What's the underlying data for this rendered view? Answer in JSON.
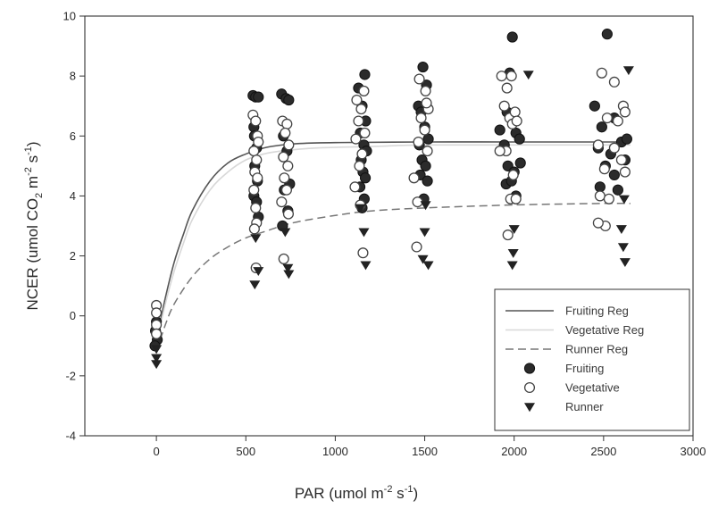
{
  "chart_data": {
    "type": "scatter",
    "xlabel": {
      "pre": "PAR (umol m",
      "sup1": "-2",
      "mid": " s",
      "sup2": "-1",
      "post": ")"
    },
    "ylabel": {
      "pre": "NCER (umol CO",
      "sub": "2",
      "mid1": " m",
      "sup1": "-2",
      "mid2": " s",
      "sup2": "-1",
      "post": ")"
    },
    "xlim": [
      -400,
      3000
    ],
    "ylim": [
      -4,
      10
    ],
    "xticks": [
      0,
      500,
      1000,
      1500,
      2000,
      2500,
      3000
    ],
    "yticks": [
      -4,
      -2,
      0,
      2,
      4,
      6,
      8,
      10
    ],
    "grid": false,
    "legend_position": "bottom-right",
    "colors": {
      "fruiting": "#2b2b2b",
      "vegetative": "#ffffff",
      "runner": "#222222",
      "fruiting_reg": "#555555",
      "vegetative_reg": "#d8d8d8",
      "runner_reg": "#777777"
    },
    "curves": [
      {
        "name": "Fruiting Reg",
        "style": "solid",
        "points": [
          [
            0,
            -0.8
          ],
          [
            50,
            0.6
          ],
          [
            100,
            1.8
          ],
          [
            150,
            2.7
          ],
          [
            200,
            3.5
          ],
          [
            300,
            4.5
          ],
          [
            400,
            5.1
          ],
          [
            500,
            5.4
          ],
          [
            600,
            5.6
          ],
          [
            700,
            5.7
          ],
          [
            800,
            5.75
          ],
          [
            1000,
            5.78
          ],
          [
            1500,
            5.8
          ],
          [
            2000,
            5.8
          ],
          [
            2500,
            5.8
          ],
          [
            2650,
            5.8
          ]
        ]
      },
      {
        "name": "Vegetative Reg",
        "style": "solid",
        "points": [
          [
            0,
            -0.9
          ],
          [
            50,
            0.4
          ],
          [
            100,
            1.5
          ],
          [
            150,
            2.4
          ],
          [
            200,
            3.2
          ],
          [
            300,
            4.2
          ],
          [
            400,
            4.8
          ],
          [
            500,
            5.2
          ],
          [
            600,
            5.4
          ],
          [
            700,
            5.5
          ],
          [
            900,
            5.6
          ],
          [
            1200,
            5.65
          ],
          [
            1500,
            5.7
          ],
          [
            2000,
            5.7
          ],
          [
            2650,
            5.7
          ]
        ]
      },
      {
        "name": "Runner Reg",
        "style": "dashed",
        "points": [
          [
            0,
            -1.2
          ],
          [
            50,
            -0.3
          ],
          [
            100,
            0.4
          ],
          [
            200,
            1.3
          ],
          [
            300,
            1.9
          ],
          [
            400,
            2.3
          ],
          [
            500,
            2.6
          ],
          [
            600,
            2.8
          ],
          [
            700,
            3.0
          ],
          [
            800,
            3.15
          ],
          [
            1000,
            3.35
          ],
          [
            1200,
            3.5
          ],
          [
            1500,
            3.6
          ],
          [
            2000,
            3.7
          ],
          [
            2500,
            3.75
          ],
          [
            2650,
            3.75
          ]
        ]
      }
    ],
    "series": [
      {
        "name": "Fruiting",
        "marker": "filled-circle",
        "points": [
          [
            -5,
            -0.5
          ],
          [
            0,
            -0.2
          ],
          [
            5,
            -0.8
          ],
          [
            -8,
            -1.0
          ],
          [
            540,
            7.35
          ],
          [
            555,
            7.3
          ],
          [
            570,
            7.3
          ],
          [
            545,
            6.3
          ],
          [
            560,
            5.6
          ],
          [
            550,
            5.0
          ],
          [
            565,
            4.5
          ],
          [
            545,
            4.0
          ],
          [
            560,
            3.8
          ],
          [
            570,
            3.3
          ],
          [
            548,
            6.0
          ],
          [
            700,
            7.4
          ],
          [
            725,
            7.25
          ],
          [
            740,
            7.2
          ],
          [
            710,
            6.0
          ],
          [
            730,
            5.5
          ],
          [
            745,
            4.4
          ],
          [
            715,
            4.2
          ],
          [
            735,
            3.5
          ],
          [
            705,
            3.0
          ],
          [
            1130,
            7.6
          ],
          [
            1165,
            8.05
          ],
          [
            1150,
            7.0
          ],
          [
            1170,
            6.5
          ],
          [
            1140,
            6.1
          ],
          [
            1160,
            5.7
          ],
          [
            1175,
            5.5
          ],
          [
            1145,
            5.2
          ],
          [
            1155,
            4.8
          ],
          [
            1168,
            4.6
          ],
          [
            1138,
            4.3
          ],
          [
            1162,
            3.9
          ],
          [
            1150,
            3.6
          ],
          [
            1465,
            7.0
          ],
          [
            1490,
            8.3
          ],
          [
            1510,
            7.7
          ],
          [
            1480,
            6.8
          ],
          [
            1500,
            6.3
          ],
          [
            1470,
            5.7
          ],
          [
            1520,
            5.9
          ],
          [
            1485,
            5.2
          ],
          [
            1505,
            5.0
          ],
          [
            1475,
            4.7
          ],
          [
            1515,
            4.5
          ],
          [
            1495,
            3.9
          ],
          [
            1920,
            6.2
          ],
          [
            1960,
            6.8
          ],
          [
            1975,
            8.1
          ],
          [
            1990,
            9.3
          ],
          [
            2010,
            6.1
          ],
          [
            1945,
            5.7
          ],
          [
            2030,
            5.9
          ],
          [
            1965,
            5.0
          ],
          [
            2000,
            4.8
          ],
          [
            2035,
            5.1
          ],
          [
            1955,
            4.4
          ],
          [
            1985,
            4.5
          ],
          [
            2010,
            4.0
          ],
          [
            2450,
            7.0
          ],
          [
            2490,
            6.3
          ],
          [
            2520,
            9.4
          ],
          [
            2560,
            6.6
          ],
          [
            2470,
            5.6
          ],
          [
            2540,
            5.4
          ],
          [
            2600,
            5.8
          ],
          [
            2630,
            5.9
          ],
          [
            2510,
            5.0
          ],
          [
            2560,
            4.7
          ],
          [
            2620,
            5.2
          ],
          [
            2480,
            4.3
          ],
          [
            2580,
            4.2
          ]
        ]
      },
      {
        "name": "Vegetative",
        "marker": "open-circle",
        "points": [
          [
            0,
            0.35
          ],
          [
            0,
            0.1
          ],
          [
            0,
            -0.3
          ],
          [
            0,
            -0.6
          ],
          [
            540,
            6.7
          ],
          [
            555,
            6.5
          ],
          [
            565,
            6.0
          ],
          [
            545,
            5.5
          ],
          [
            560,
            5.2
          ],
          [
            550,
            4.8
          ],
          [
            565,
            4.6
          ],
          [
            545,
            4.2
          ],
          [
            555,
            3.6
          ],
          [
            560,
            3.1
          ],
          [
            548,
            2.9
          ],
          [
            557,
            1.6
          ],
          [
            570,
            5.8
          ],
          [
            705,
            6.5
          ],
          [
            730,
            6.4
          ],
          [
            720,
            6.1
          ],
          [
            740,
            5.7
          ],
          [
            710,
            5.3
          ],
          [
            735,
            5.0
          ],
          [
            715,
            4.6
          ],
          [
            728,
            4.2
          ],
          [
            700,
            3.8
          ],
          [
            738,
            3.4
          ],
          [
            712,
            1.9
          ],
          [
            1120,
            7.2
          ],
          [
            1160,
            7.5
          ],
          [
            1145,
            6.9
          ],
          [
            1130,
            6.5
          ],
          [
            1165,
            6.1
          ],
          [
            1115,
            5.9
          ],
          [
            1150,
            5.4
          ],
          [
            1135,
            5.0
          ],
          [
            1110,
            4.3
          ],
          [
            1140,
            3.7
          ],
          [
            1155,
            2.1
          ],
          [
            1470,
            7.9
          ],
          [
            1505,
            7.5
          ],
          [
            1520,
            6.9
          ],
          [
            1480,
            6.6
          ],
          [
            1500,
            6.2
          ],
          [
            1465,
            5.8
          ],
          [
            1515,
            5.5
          ],
          [
            1440,
            4.6
          ],
          [
            1460,
            3.8
          ],
          [
            1455,
            2.3
          ],
          [
            1510,
            7.1
          ],
          [
            1930,
            8.0
          ],
          [
            1960,
            7.6
          ],
          [
            1985,
            8.0
          ],
          [
            1945,
            7.0
          ],
          [
            1975,
            6.6
          ],
          [
            2005,
            6.8
          ],
          [
            1990,
            6.4
          ],
          [
            2015,
            6.5
          ],
          [
            1955,
            5.5
          ],
          [
            1920,
            5.5
          ],
          [
            1995,
            4.7
          ],
          [
            1980,
            3.9
          ],
          [
            2010,
            3.9
          ],
          [
            1965,
            2.7
          ],
          [
            2490,
            8.1
          ],
          [
            2560,
            7.8
          ],
          [
            2610,
            7.0
          ],
          [
            2620,
            6.8
          ],
          [
            2520,
            6.6
          ],
          [
            2580,
            6.5
          ],
          [
            2470,
            5.7
          ],
          [
            2560,
            5.6
          ],
          [
            2600,
            5.2
          ],
          [
            2505,
            4.9
          ],
          [
            2620,
            4.8
          ],
          [
            2480,
            4.0
          ],
          [
            2530,
            3.9
          ],
          [
            2510,
            3.0
          ],
          [
            2470,
            3.1
          ]
        ]
      },
      {
        "name": "Runner",
        "marker": "filled-triangle-down",
        "points": [
          [
            0,
            -1.1
          ],
          [
            0,
            -1.4
          ],
          [
            0,
            -1.6
          ],
          [
            555,
            2.6
          ],
          [
            550,
            1.05
          ],
          [
            570,
            1.5
          ],
          [
            720,
            2.8
          ],
          [
            735,
            1.6
          ],
          [
            740,
            1.4
          ],
          [
            1160,
            2.8
          ],
          [
            1170,
            1.7
          ],
          [
            1140,
            3.6
          ],
          [
            1500,
            2.8
          ],
          [
            1490,
            1.9
          ],
          [
            1520,
            1.7
          ],
          [
            1505,
            3.7
          ],
          [
            2000,
            2.9
          ],
          [
            1995,
            2.1
          ],
          [
            1990,
            1.7
          ],
          [
            2080,
            8.05
          ],
          [
            2640,
            8.2
          ],
          [
            2600,
            2.9
          ],
          [
            2610,
            2.3
          ],
          [
            2620,
            1.8
          ],
          [
            2615,
            3.9
          ]
        ]
      }
    ]
  }
}
